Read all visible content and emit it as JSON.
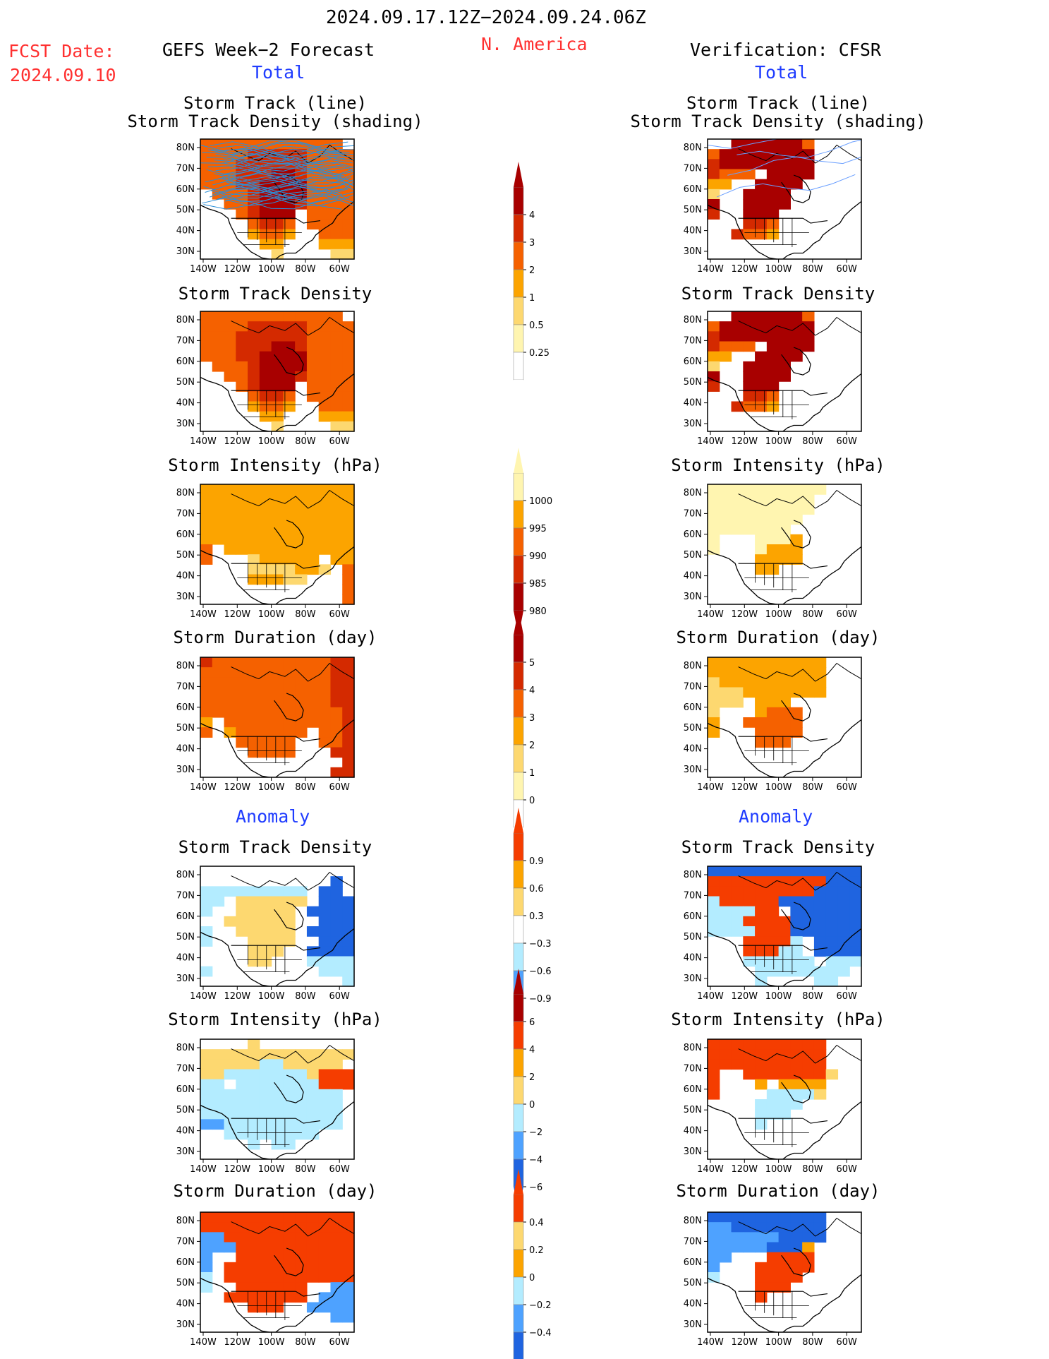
{
  "header": {
    "period": "2024.09.17.12Z−2024.09.24.06Z",
    "region": "N. America",
    "fcst_label": "FCST Date:",
    "fcst_date": "2024.09.10",
    "left_title": "GEFS Week−2 Forecast",
    "right_title": "Verification: CFSR",
    "total_left": "Total",
    "total_right": "Total",
    "anomaly_left": "Anomaly",
    "anomaly_right": "Anomaly"
  },
  "colors": {
    "title_red": "#ff3030",
    "section_blue": "#1f3cff",
    "positive_scale": [
      "#fff5b0",
      "#fdd870",
      "#fca400",
      "#f56100",
      "#d42a00",
      "#a80000"
    ],
    "anomaly_scale": [
      "#1f64e0",
      "#4ea2ff",
      "#b3ecff",
      "#ffffff",
      "#fdd870",
      "#fca400",
      "#f53d00"
    ],
    "track_line_forecast": "#2a8fd8",
    "track_line_verification": "#6a9fff"
  },
  "map_axes": {
    "lat_labels": [
      "80N",
      "70N",
      "60N",
      "50N",
      "40N",
      "30N"
    ],
    "lon_labels": [
      "140W",
      "120W",
      "100W",
      "80W",
      "60W"
    ]
  },
  "panels": {
    "track_l1": "Storm Track (line)",
    "track_l2": "Storm Track Density (shading)",
    "density": "Storm Track Density",
    "intensity": "Storm Intensity (hPa)",
    "duration": "Storm Duration (day)"
  },
  "colorbars": {
    "density": [
      "4",
      "3",
      "2",
      "1",
      "0.5",
      "0.25"
    ],
    "intensity": [
      "1000",
      "995",
      "990",
      "985",
      "980"
    ],
    "duration": [
      "5",
      "4",
      "3",
      "2",
      "1",
      "0"
    ],
    "density_anom": [
      "0.9",
      "0.6",
      "0.3",
      "−0.3",
      "−0.6",
      "−0.9"
    ],
    "intensity_anom": [
      "6",
      "4",
      "2",
      "0",
      "−2",
      "−4",
      "−6"
    ],
    "duration_anom": [
      "0.4",
      "0.2",
      "0",
      "−0.2",
      "−0.4"
    ]
  },
  "chart_data": {
    "type": "heatmap",
    "title": "2024.09.17.12Z−2024.09.24.06Z",
    "subtitle": "N. America",
    "x_axis_labels": [
      "140W",
      "120W",
      "100W",
      "80W",
      "60W"
    ],
    "y_axis_labels": [
      "80N",
      "70N",
      "60N",
      "50N",
      "40N",
      "30N"
    ],
    "columns": [
      "GEFS Week−2 Forecast",
      "Verification: CFSR"
    ],
    "sections": [
      "Total",
      "Anomaly"
    ],
    "panels": [
      {
        "section": "Total",
        "variable": "Storm Track (line) / Storm Track Density (shading)",
        "colorbar_levels": [
          0.25,
          0.5,
          1,
          2,
          3,
          4
        ]
      },
      {
        "section": "Total",
        "variable": "Storm Track Density",
        "colorbar_levels": [
          0.25,
          0.5,
          1,
          2,
          3,
          4
        ]
      },
      {
        "section": "Total",
        "variable": "Storm Intensity (hPa)",
        "colorbar_levels": [
          1000,
          995,
          990,
          985,
          980
        ]
      },
      {
        "section": "Total",
        "variable": "Storm Duration (day)",
        "colorbar_levels": [
          0,
          1,
          2,
          3,
          4,
          5
        ]
      },
      {
        "section": "Anomaly",
        "variable": "Storm Track Density",
        "colorbar_levels": [
          -0.9,
          -0.6,
          -0.3,
          0.3,
          0.6,
          0.9
        ]
      },
      {
        "section": "Anomaly",
        "variable": "Storm Intensity (hPa)",
        "colorbar_levels": [
          -6,
          -4,
          -2,
          0,
          2,
          4,
          6
        ]
      },
      {
        "section": "Anomaly",
        "variable": "Storm Duration (day)",
        "colorbar_levels": [
          -0.4,
          -0.2,
          0,
          0.2,
          0.4
        ]
      }
    ]
  }
}
